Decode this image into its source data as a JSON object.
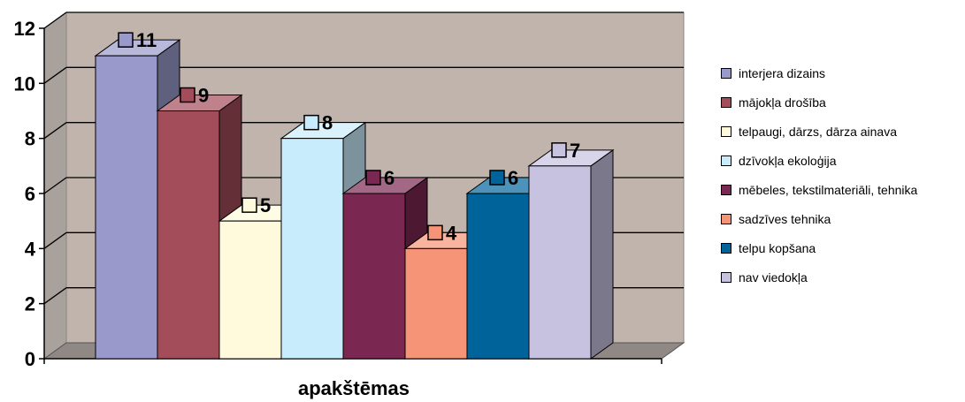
{
  "chart_data": {
    "type": "bar",
    "categories": [
      "apakštēmas"
    ],
    "series": [
      {
        "name": "interjera dizains",
        "values": [
          11
        ],
        "color": "#9999cc"
      },
      {
        "name": "mājokļa drošība",
        "values": [
          9
        ],
        "color": "#a34c5a"
      },
      {
        "name": "telpaugi, dārzs, dārza ainava",
        "values": [
          5
        ],
        "color": "#fffadb"
      },
      {
        "name": "dzīvokļa ekoloģija",
        "values": [
          8
        ],
        "color": "#c8ecfb"
      },
      {
        "name": "mēbeles, tekstilmateriāli, tehnika",
        "values": [
          6
        ],
        "color": "#7a2751"
      },
      {
        "name": "sadzīves tehnika",
        "values": [
          4
        ],
        "color": "#f69477"
      },
      {
        "name": "telpu kopšana",
        "values": [
          6
        ],
        "color": "#006399"
      },
      {
        "name": "nav viedokļa",
        "values": [
          7
        ],
        "color": "#c7c2e0"
      }
    ],
    "yticks": [
      "0",
      "2",
      "4",
      "6",
      "8",
      "10",
      "12"
    ],
    "ylim": [
      0,
      12
    ],
    "grid": true,
    "legend": "right",
    "wall_color": "#c0b4ac"
  }
}
